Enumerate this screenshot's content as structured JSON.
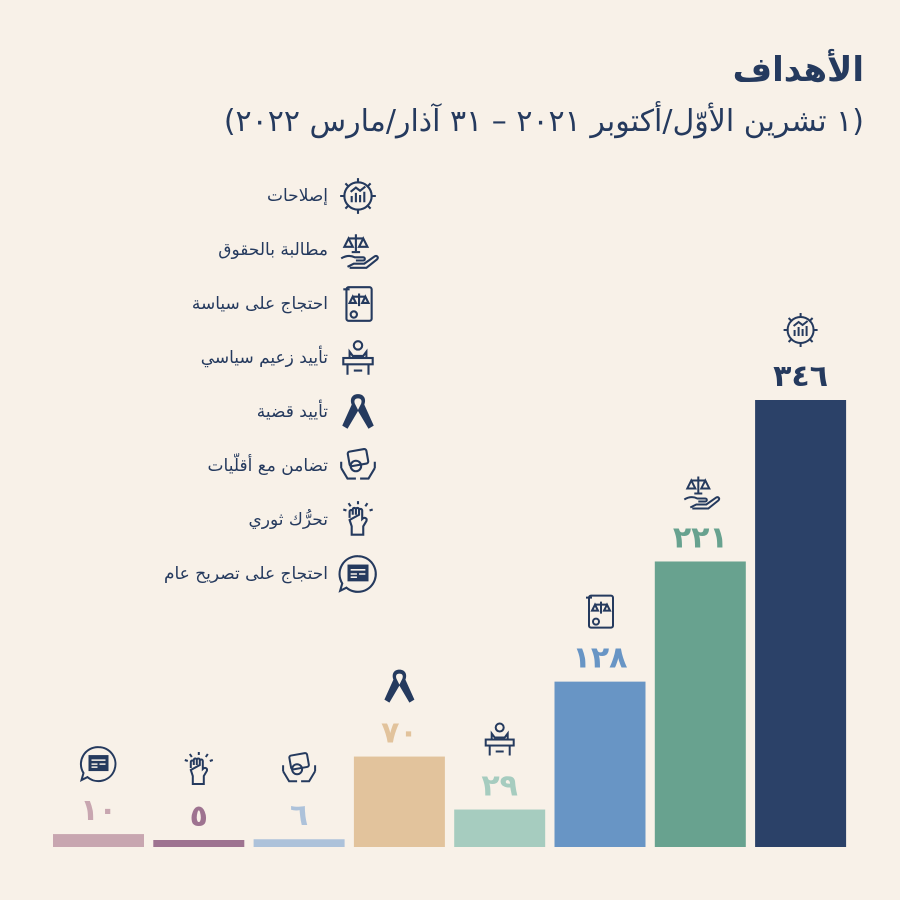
{
  "header": {
    "title": "الأهداف",
    "subtitle": "(١ تشرين الأوّل/أكتوبر ٢٠٢١  –  ٣١ آذار/مارس ٢٠٢٢)"
  },
  "legend": [
    {
      "label": "إصلاحات",
      "icon": "gear-icon"
    },
    {
      "label": "مطالبة بالحقوق",
      "icon": "scales-hand-icon"
    },
    {
      "label": "احتجاج على سياسة",
      "icon": "scales-document-icon"
    },
    {
      "label": "تأييد زعيم سياسي",
      "icon": "podium-leader-icon"
    },
    {
      "label": "تأييد قضية",
      "icon": "ribbon-icon"
    },
    {
      "label": "تضامن مع أقلّيات",
      "icon": "hands-group-icon"
    },
    {
      "label": "تحرُّك ثوري",
      "icon": "raised-fist-icon"
    },
    {
      "label": "احتجاج على تصريح عام",
      "icon": "speech-news-icon"
    }
  ],
  "chart_data": {
    "type": "bar",
    "categories": [
      "احتجاج على تصريح عام",
      "تحرُّك ثوري",
      "تضامن مع أقلّيات",
      "تأييد قضية",
      "تأييد زعيم سياسي",
      "احتجاج على سياسة",
      "مطالبة بالحقوق",
      "إصلاحات"
    ],
    "values": [
      10,
      5,
      6,
      70,
      29,
      128,
      221,
      346
    ],
    "value_labels": [
      "١٠",
      "٥",
      "٦",
      "٧٠",
      "٢٩",
      "١٢٨",
      "٢٢١",
      "٣٤٦"
    ],
    "icons": [
      "speech-news-icon",
      "raised-fist-icon",
      "hands-group-icon",
      "ribbon-icon",
      "podium-leader-icon",
      "scales-document-icon",
      "scales-hand-icon",
      "gear-icon"
    ],
    "colors": [
      "#c8a6b0",
      "#9e7390",
      "#adc2da",
      "#e2c39c",
      "#a6ccbf",
      "#6895c5",
      "#68a28f",
      "#2b4168"
    ],
    "label_colors": [
      "#c8a6b0",
      "#9e7390",
      "#adc2da",
      "#e2c39c",
      "#a6ccbf",
      "#6895c5",
      "#68a28f",
      "#253a5e"
    ],
    "title": "",
    "xlabel": "",
    "ylabel": "",
    "grid": false
  },
  "colors": {
    "background": "#f8f1e8",
    "text": "#253a5e"
  }
}
